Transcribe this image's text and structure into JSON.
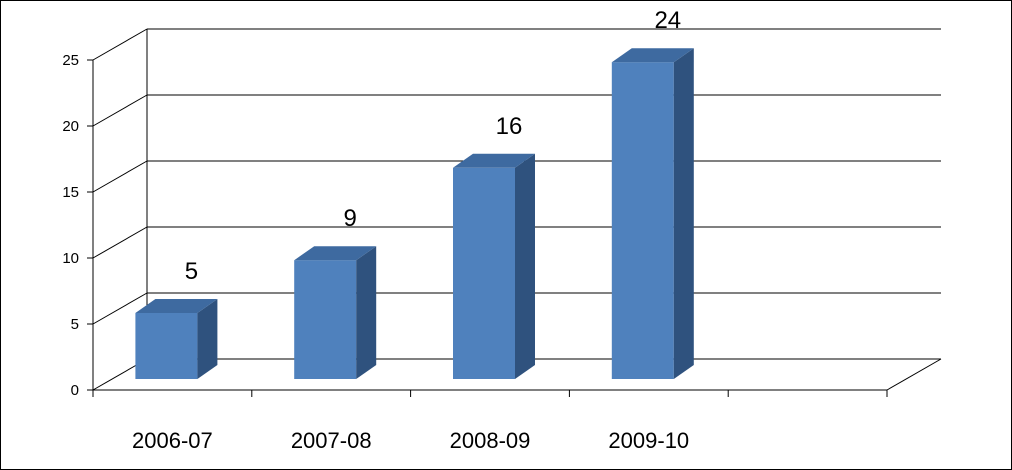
{
  "chart_data": {
    "type": "bar",
    "style": "3d-column",
    "categories": [
      "2006-07",
      "2007-08",
      "2008-09",
      "2009-10"
    ],
    "values": [
      5,
      9,
      16,
      24
    ],
    "data_labels": [
      "5",
      "9",
      "16",
      "24"
    ],
    "title": "",
    "xlabel": "",
    "ylabel": "",
    "ylim": [
      0,
      25
    ],
    "yticks": [
      0,
      5,
      10,
      15,
      20,
      25
    ],
    "ytick_labels": [
      "0",
      "5",
      "10",
      "15",
      "20",
      "25"
    ],
    "category_slots": 5,
    "grid": true,
    "legend": "none",
    "colors": {
      "bar_front": "#4f81bd",
      "bar_side": "#2f527e",
      "bar_top": "#3e6aa0"
    }
  }
}
